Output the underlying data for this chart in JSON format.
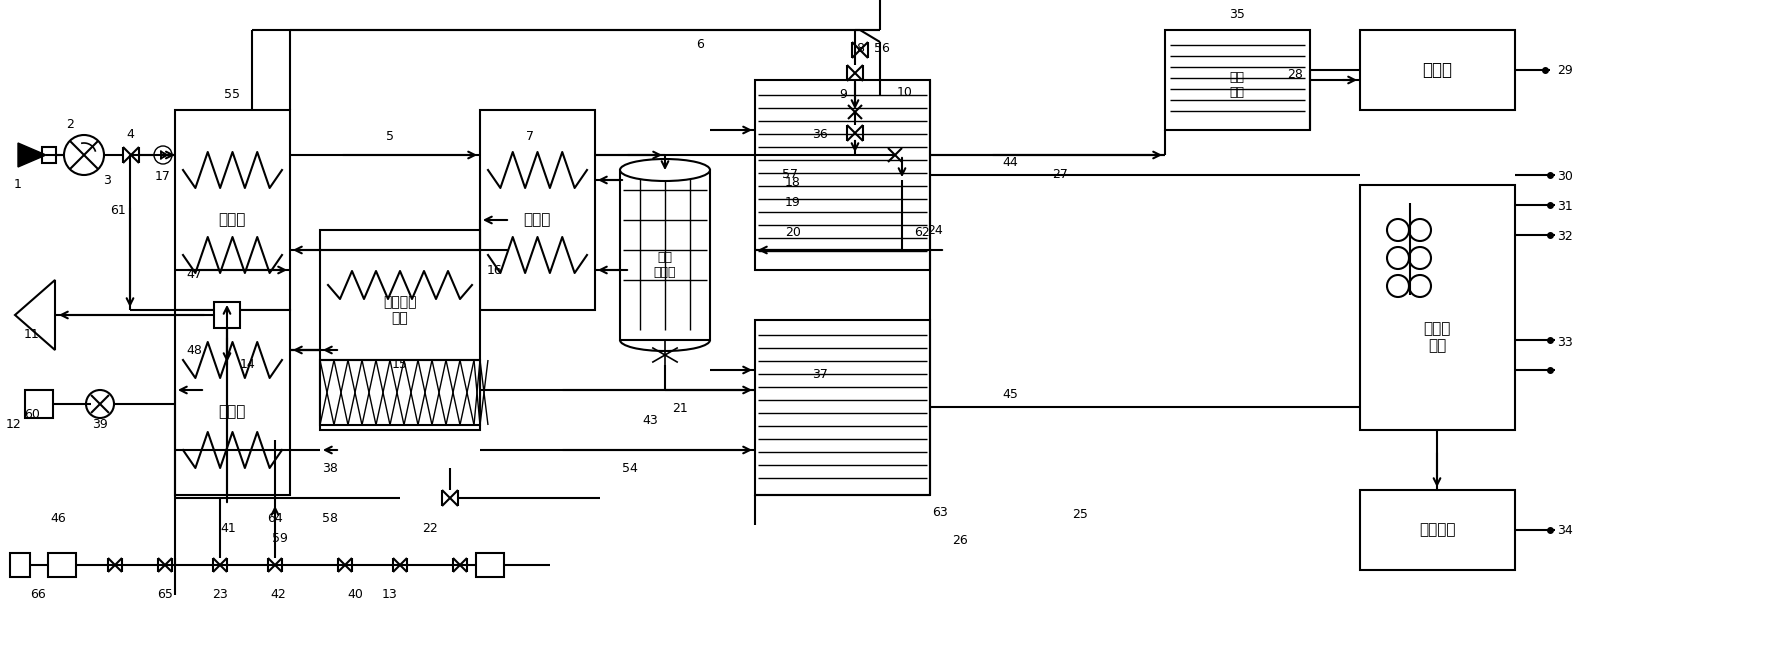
{
  "bg": "#ffffff",
  "lc": "#000000",
  "lw": 1.5,
  "labels": {
    "hx_left": "换热器",
    "hx_mid": "换热器",
    "evap": "蔷发器",
    "reformer": "水蒸气重\n整器",
    "combust": "尾气\n燃烧室",
    "signal": "信号\n处理",
    "ctrl": "控制器",
    "power": "功率变\n换器",
    "storage": "储能装置"
  }
}
